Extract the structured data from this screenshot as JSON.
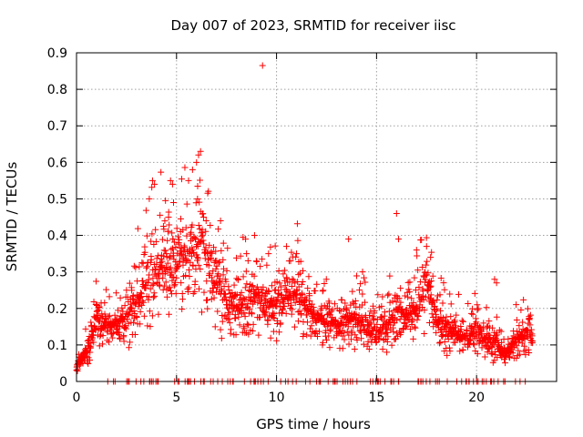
{
  "chart_data": {
    "type": "scatter",
    "title": "Day 007 of 2023, SRMTID for receiver iisc",
    "xlabel": "GPS time / hours",
    "ylabel": "SRMTID / TECUs",
    "xlim": [
      0,
      24
    ],
    "ylim": [
      0,
      0.9
    ],
    "xticks": [
      0,
      5,
      10,
      15,
      20
    ],
    "xtick_labels": [
      "0",
      "5",
      "10",
      "15",
      "20"
    ],
    "yticks": [
      0,
      0.1,
      0.2,
      0.3,
      0.4,
      0.5,
      0.6,
      0.7,
      0.8,
      0.9
    ],
    "ytick_labels": [
      "0",
      "0.1",
      "0.2",
      "0.3",
      "0.4",
      "0.5",
      "0.6",
      "0.7",
      "0.8",
      "0.9"
    ],
    "grid": true,
    "marker": "+",
    "color": "#ff0000",
    "series": [
      {
        "name": "SRMTID",
        "profile": [
          [
            0.0,
            0.04
          ],
          [
            0.5,
            0.08
          ],
          [
            1.0,
            0.17
          ],
          [
            1.5,
            0.15
          ],
          [
            2.0,
            0.16
          ],
          [
            2.5,
            0.18
          ],
          [
            3.0,
            0.22
          ],
          [
            3.5,
            0.27
          ],
          [
            4.0,
            0.3
          ],
          [
            4.5,
            0.32
          ],
          [
            5.0,
            0.31
          ],
          [
            5.5,
            0.34
          ],
          [
            6.0,
            0.36
          ],
          [
            6.3,
            0.4
          ],
          [
            6.6,
            0.3
          ],
          [
            7.0,
            0.26
          ],
          [
            7.5,
            0.22
          ],
          [
            8.0,
            0.2
          ],
          [
            8.5,
            0.22
          ],
          [
            9.0,
            0.23
          ],
          [
            9.5,
            0.22
          ],
          [
            10.0,
            0.2
          ],
          [
            10.5,
            0.23
          ],
          [
            11.0,
            0.24
          ],
          [
            11.5,
            0.2
          ],
          [
            12.0,
            0.17
          ],
          [
            12.5,
            0.16
          ],
          [
            13.0,
            0.15
          ],
          [
            13.5,
            0.18
          ],
          [
            14.0,
            0.17
          ],
          [
            14.5,
            0.15
          ],
          [
            15.0,
            0.14
          ],
          [
            15.5,
            0.15
          ],
          [
            16.0,
            0.2
          ],
          [
            16.5,
            0.18
          ],
          [
            17.0,
            0.2
          ],
          [
            17.5,
            0.26
          ],
          [
            18.0,
            0.18
          ],
          [
            18.5,
            0.14
          ],
          [
            19.0,
            0.13
          ],
          [
            19.5,
            0.12
          ],
          [
            20.0,
            0.13
          ],
          [
            20.5,
            0.11
          ],
          [
            21.0,
            0.1
          ],
          [
            21.5,
            0.08
          ],
          [
            22.0,
            0.12
          ],
          [
            22.5,
            0.13
          ],
          [
            22.8,
            0.12
          ]
        ],
        "spikes": [
          [
            3.8,
            0.55
          ],
          [
            3.9,
            0.54
          ],
          [
            4.7,
            0.55
          ],
          [
            4.8,
            0.54
          ],
          [
            4.85,
            0.49
          ],
          [
            4.6,
            0.45
          ],
          [
            5.2,
            0.41
          ],
          [
            5.6,
            0.55
          ],
          [
            5.8,
            0.58
          ],
          [
            6.0,
            0.6
          ],
          [
            6.1,
            0.62
          ],
          [
            6.2,
            0.63
          ],
          [
            6.05,
            0.5
          ],
          [
            7.2,
            0.44
          ],
          [
            8.5,
            0.35
          ],
          [
            8.9,
            0.4
          ],
          [
            9.3,
            0.865
          ],
          [
            9.6,
            0.35
          ],
          [
            10.5,
            0.37
          ],
          [
            11.0,
            0.35
          ],
          [
            13.6,
            0.39
          ],
          [
            14.3,
            0.3
          ],
          [
            16.0,
            0.46
          ],
          [
            16.1,
            0.39
          ],
          [
            17.0,
            0.36
          ],
          [
            17.5,
            0.37
          ],
          [
            17.7,
            0.34
          ],
          [
            20.9,
            0.28
          ],
          [
            21.0,
            0.27
          ]
        ],
        "zeros_x_range": [
          1.5,
          22.5
        ],
        "x_range": [
          0.0,
          22.8
        ],
        "num_points": 2000
      }
    ]
  }
}
